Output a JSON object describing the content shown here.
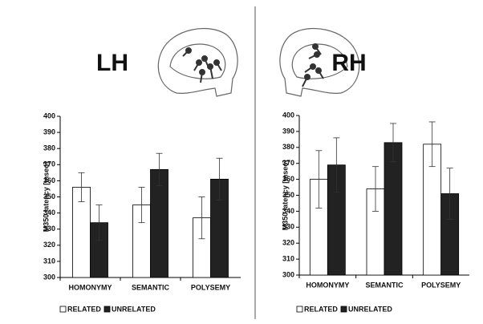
{
  "chart_data": [
    {
      "type": "bar",
      "title": "LH",
      "y_label": "M350 latency [msec]",
      "categories": [
        "HOMONYMY",
        "SEMANTIC",
        "POLYSEMY"
      ],
      "series": [
        {
          "name": "RELATED",
          "color": "#ffffff",
          "values": [
            356,
            345,
            337
          ],
          "errors": [
            9,
            11,
            13
          ]
        },
        {
          "name": "UNRELATED",
          "color": "#222222",
          "values": [
            334,
            367,
            361
          ],
          "errors": [
            11,
            10,
            13
          ]
        }
      ],
      "ylim": [
        300,
        400
      ],
      "yticks": [
        300,
        310,
        320,
        330,
        340,
        350,
        360,
        370,
        380,
        390,
        400
      ]
    },
    {
      "type": "bar",
      "title": "RH",
      "y_label": "M350 latency [msec]",
      "categories": [
        "HOMONYMY",
        "SEMANTIC",
        "POLYSEMY"
      ],
      "series": [
        {
          "name": "RELATED",
          "color": "#ffffff",
          "values": [
            360,
            354,
            382
          ],
          "errors": [
            18,
            14,
            14
          ]
        },
        {
          "name": "UNRELATED",
          "color": "#222222",
          "values": [
            369,
            383,
            351
          ],
          "errors": [
            17,
            12,
            16
          ]
        }
      ],
      "ylim": [
        300,
        400
      ],
      "yticks": [
        300,
        310,
        320,
        330,
        340,
        350,
        360,
        370,
        380,
        390,
        400
      ]
    }
  ]
}
